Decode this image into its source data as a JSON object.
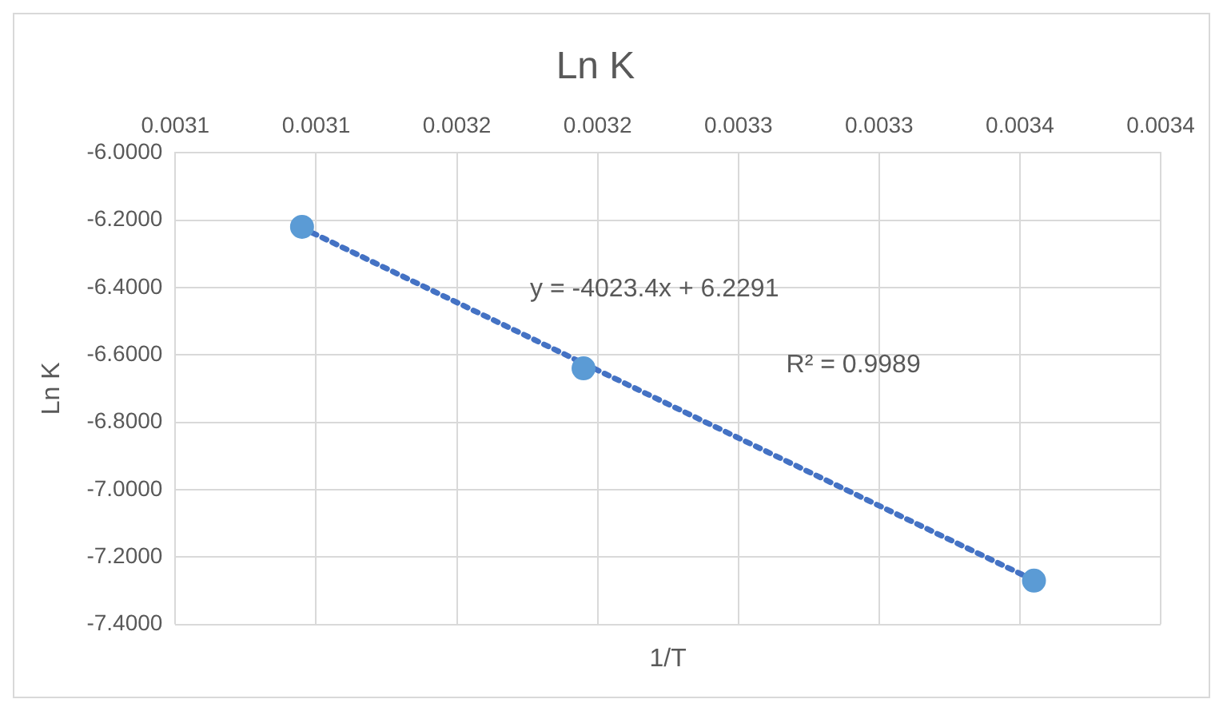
{
  "chart_data": {
    "type": "scatter",
    "title": "Ln K",
    "xlabel": "1/T",
    "ylabel": "Ln K",
    "xlim": [
      0.00305,
      0.0034
    ],
    "xticks": [
      {
        "value": 0.00305,
        "label": "0.0031"
      },
      {
        "value": 0.0031,
        "label": "0.0031"
      },
      {
        "value": 0.00315,
        "label": "0.0032"
      },
      {
        "value": 0.0032,
        "label": "0.0032"
      },
      {
        "value": 0.00325,
        "label": "0.0033"
      },
      {
        "value": 0.0033,
        "label": "0.0033"
      },
      {
        "value": 0.00335,
        "label": "0.0034"
      },
      {
        "value": 0.0034,
        "label": "0.0034"
      }
    ],
    "ylim": [
      -7.4,
      -6.0
    ],
    "yticks": [
      {
        "value": -6.0,
        "label": "-6.0000"
      },
      {
        "value": -6.2,
        "label": "-6.2000"
      },
      {
        "value": -6.4,
        "label": "-6.4000"
      },
      {
        "value": -6.6,
        "label": "-6.6000"
      },
      {
        "value": -6.8,
        "label": "-6.8000"
      },
      {
        "value": -7.0,
        "label": "-7.0000"
      },
      {
        "value": -7.2,
        "label": "-7.2000"
      },
      {
        "value": -7.4,
        "label": "-7.4000"
      }
    ],
    "grid": true,
    "legend": false,
    "series": [
      {
        "color": "#5b9bd5",
        "marker": "circle",
        "x": [
          0.003095,
          0.003195,
          0.003355
        ],
        "values": [
          -6.22,
          -6.64,
          -7.27
        ]
      },
      {
        "type": "line",
        "color": "#4472c4",
        "marker": "none",
        "line_style": "dotted",
        "x": [
          0.003095,
          0.003355
        ],
        "values": [
          -6.223,
          -7.269
        ]
      }
    ],
    "annotations": [
      "y = -4023.4x + 6.2291",
      "R² = 0.9989"
    ]
  }
}
